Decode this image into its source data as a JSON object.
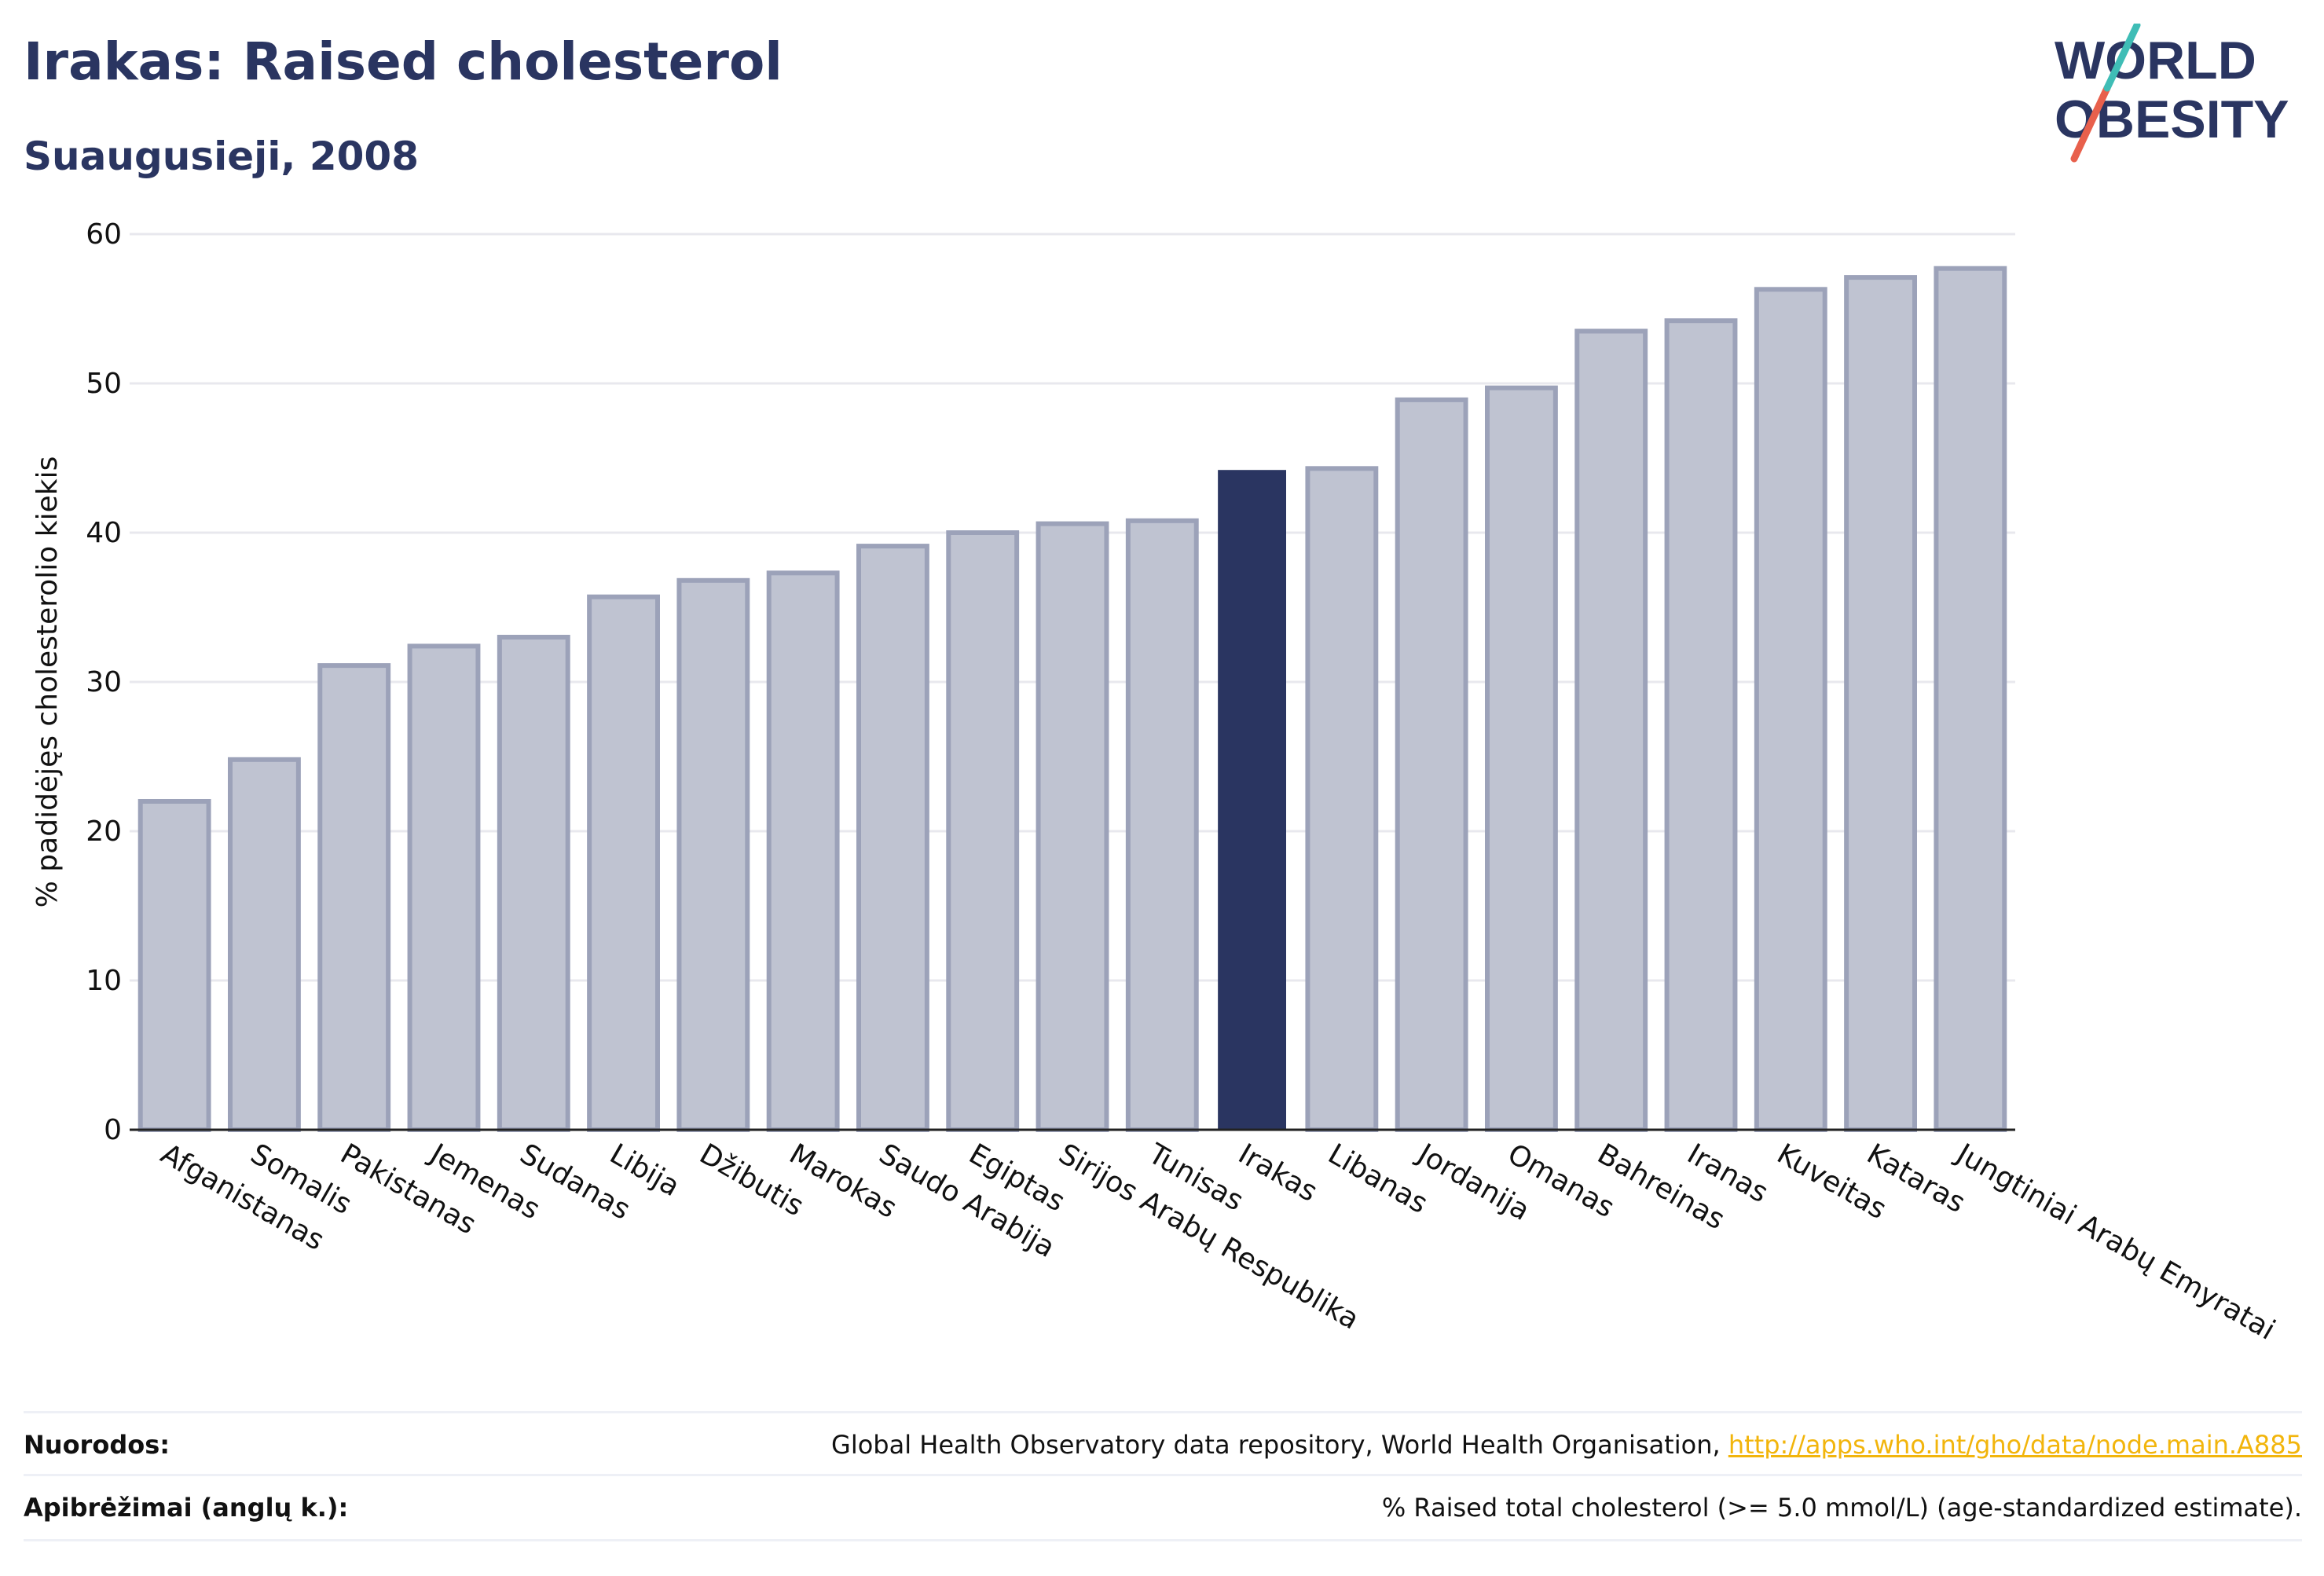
{
  "header": {
    "title": "Irakas: Raised cholesterol",
    "subtitle": "Suaugusieji, 2008"
  },
  "logo": {
    "line1": "WORLD",
    "line2": "OBESITY"
  },
  "colors": {
    "bar": "#bfc3d1",
    "bar_edge": "#9ca2b9",
    "highlight": "#2a3561",
    "text": "#2a3561",
    "link": "#f2b50c",
    "grid": "#e8e8ee"
  },
  "chart_data": {
    "type": "bar",
    "ylabel": "% padidėjęs cholesterolio kiekis",
    "ylim": [
      0,
      60
    ],
    "yticks": [
      0,
      10,
      20,
      30,
      40,
      50,
      60
    ],
    "categories": [
      "Afganistanas",
      "Somalis",
      "Pakistanas",
      "Jemenas",
      "Sudanas",
      "Libija",
      "Džibutis",
      "Marokas",
      "Saudo Arabija",
      "Egiptas",
      "Sirijos Arabų Respublika",
      "Tunisas",
      "Irakas",
      "Libanas",
      "Jordanija",
      "Omanas",
      "Bahreinas",
      "Iranas",
      "Kuveitas",
      "Kataras",
      "Jungtiniai Arabų Emyratai"
    ],
    "values": [
      22.0,
      24.8,
      31.1,
      32.4,
      33.0,
      35.7,
      36.8,
      37.3,
      39.1,
      40.0,
      40.6,
      40.8,
      44.2,
      44.3,
      48.9,
      49.7,
      53.5,
      54.2,
      56.3,
      57.1,
      57.7
    ],
    "highlight": "Irakas",
    "grid": true
  },
  "footer": {
    "sources_label": "Nuorodos:",
    "sources_text": "Global Health Observatory data repository, World Health Organisation, ",
    "sources_link": "http://apps.who.int/gho/data/node.main.A885",
    "definitions_label": "Apibrėžimai (anglų k.):",
    "definitions_text": "% Raised total cholesterol (>= 5.0 mmol/L) (age-standardized estimate)."
  }
}
